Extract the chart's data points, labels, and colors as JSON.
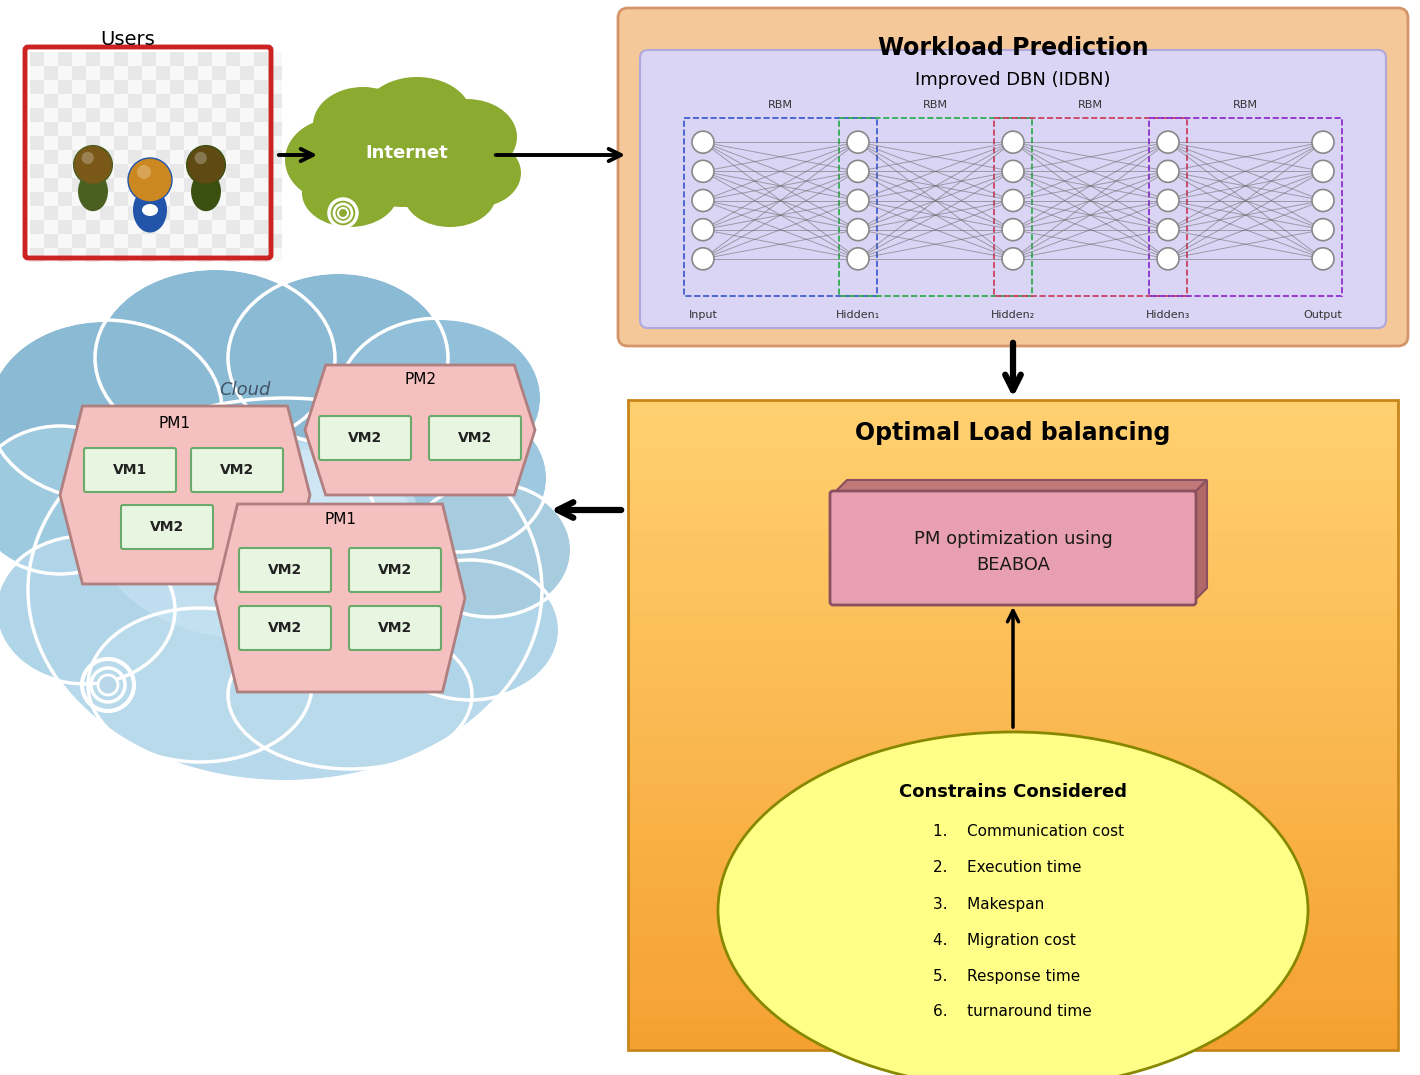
{
  "bg_color": "#ffffff",
  "users_label": "Users",
  "internet_label": "Internet",
  "wp_title": "Workload Prediction",
  "dbn_title": "Improved DBN (IDBN)",
  "optimal_title": "Optimal Load balancing",
  "pm_opt_text": "PM optimization using\nBEABOA",
  "constraints_title": "Constrains Considered",
  "constraints_list": [
    "Communication cost",
    "Execution time",
    "Makespan",
    "Migration cost",
    "Response time",
    "turnaround time"
  ],
  "cloud_label": "Cloud",
  "pm1_label": "PM1",
  "pm2_label": "PM2",
  "wp_box_color": "#f5c89a",
  "wp_box_edge": "#d4956a",
  "dbn_box_color": "#dbd5f5",
  "dbn_box_edge": "#b0a8d8",
  "olb_box_color_top": "#ffd070",
  "olb_box_color_bot": "#f5a030",
  "olb_box_edge": "#c8851a",
  "pm_opt_face": "#e8a0b0",
  "pm_opt_edge": "#8b5060",
  "pm_opt_top": "#c07878",
  "pm_opt_right": "#b06868",
  "ellipse_face": "#ffff88",
  "ellipse_edge": "#888800",
  "cloud_top": "#8fc8e0",
  "cloud_mid": "#aad4ea",
  "cloud_bot": "#c5e5f5",
  "cloud_bright": "#daeef8",
  "pm_hex_face": "#f5c0c0",
  "pm_hex_edge": "#b08080",
  "vm_face": "#e8f5e0",
  "vm_edge": "#6aaa6a",
  "users_box_face": "#f5f5f5",
  "users_box_edge": "#cc2222",
  "internet_green": "#8aaa30",
  "nn_line_color": "#666666",
  "nn_node_face": "#ffffff",
  "nn_node_edge": "#888888"
}
